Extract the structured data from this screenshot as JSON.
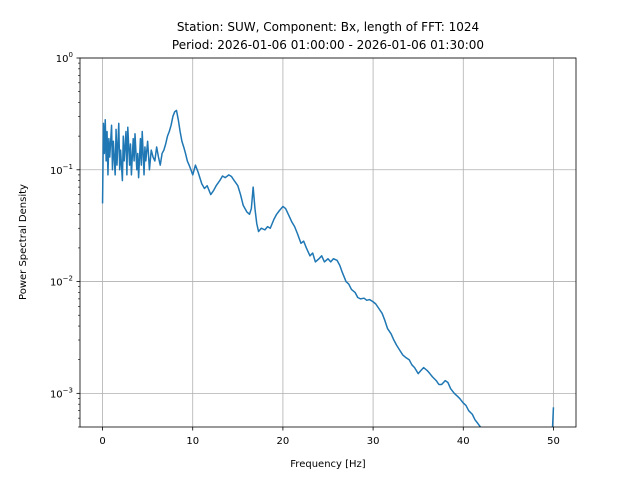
{
  "chart_data": {
    "type": "line",
    "title_line1": "Station: SUW, Component: Bx, length of FFT: 1024",
    "title_line2": "Period: 2026-01-06 01:00:00 - 2026-01-06 01:30:00",
    "xlabel": "Frequency [Hz]",
    "ylabel": "Power Spectral Density",
    "y_scale": "log",
    "xlim": [
      -2.5,
      52.5
    ],
    "ylim": [
      0.0005,
      1
    ],
    "grid": true,
    "legend": "none",
    "series_color": "#1f77b4",
    "x_ticks": [
      {
        "value": 0,
        "label": "0"
      },
      {
        "value": 10,
        "label": "10"
      },
      {
        "value": 20,
        "label": "20"
      },
      {
        "value": 30,
        "label": "30"
      },
      {
        "value": 40,
        "label": "40"
      },
      {
        "value": 50,
        "label": "50"
      }
    ],
    "y_ticks": [
      {
        "value": 0.001,
        "base": "10",
        "exp": "−3"
      },
      {
        "value": 0.01,
        "base": "10",
        "exp": "−2"
      },
      {
        "value": 0.1,
        "base": "10",
        "exp": "−1"
      },
      {
        "value": 1,
        "base": "10",
        "exp": "0"
      }
    ],
    "series": [
      {
        "x": [
          0.0,
          0.1,
          0.2,
          0.3,
          0.4,
          0.5,
          0.6,
          0.7,
          0.8,
          1.0,
          1.1,
          1.2,
          1.4,
          1.5,
          1.6,
          1.8,
          1.9,
          2.0,
          2.2,
          2.3,
          2.4,
          2.6,
          2.7,
          2.8,
          3.0,
          3.1,
          3.2,
          3.4,
          3.5,
          3.6,
          3.8,
          3.9,
          4.0,
          4.2,
          4.3,
          4.4,
          4.6,
          4.7,
          4.8,
          5.0,
          5.2,
          5.4,
          5.6,
          5.8,
          6.0,
          6.2,
          6.4,
          6.6,
          6.8,
          7.0,
          7.2,
          7.4,
          7.6,
          7.8,
          8.0,
          8.2,
          8.4,
          8.6,
          8.8,
          9.0,
          9.2,
          9.4,
          9.6,
          9.8,
          10.0,
          10.3,
          10.6,
          11.0,
          11.3,
          11.6,
          12.0,
          12.3,
          12.6,
          13.0,
          13.3,
          13.6,
          14.0,
          14.3,
          14.6,
          15.0,
          15.3,
          15.6,
          16.0,
          16.3,
          16.5,
          16.7,
          16.9,
          17.1,
          17.3,
          17.6,
          18.0,
          18.3,
          18.6,
          19.0,
          19.3,
          19.6,
          20.0,
          20.3,
          20.6,
          21.0,
          21.3,
          21.6,
          22.0,
          22.3,
          22.6,
          23.0,
          23.3,
          23.6,
          24.0,
          24.3,
          24.6,
          25.0,
          25.3,
          25.6,
          26.0,
          26.3,
          26.6,
          27.0,
          27.3,
          27.6,
          28.0,
          28.3,
          28.6,
          29.0,
          29.3,
          29.6,
          30.0,
          30.3,
          30.6,
          31.0,
          31.3,
          31.6,
          32.0,
          32.3,
          32.6,
          33.0,
          33.3,
          33.6,
          34.0,
          34.3,
          34.6,
          35.0,
          35.3,
          35.6,
          36.0,
          36.3,
          36.6,
          37.0,
          37.3,
          37.6,
          38.0,
          38.3,
          38.6,
          39.0,
          39.3,
          39.6,
          40.0,
          40.3,
          40.6,
          41.0,
          41.3,
          41.6,
          41.9
        ],
        "y": [
          0.05,
          0.26,
          0.14,
          0.28,
          0.12,
          0.22,
          0.09,
          0.19,
          0.13,
          0.25,
          0.1,
          0.18,
          0.09,
          0.23,
          0.11,
          0.26,
          0.1,
          0.15,
          0.08,
          0.2,
          0.12,
          0.22,
          0.09,
          0.24,
          0.11,
          0.17,
          0.09,
          0.19,
          0.12,
          0.21,
          0.1,
          0.14,
          0.085,
          0.19,
          0.11,
          0.22,
          0.09,
          0.16,
          0.12,
          0.18,
          0.1,
          0.15,
          0.13,
          0.12,
          0.16,
          0.13,
          0.11,
          0.14,
          0.15,
          0.17,
          0.2,
          0.22,
          0.25,
          0.3,
          0.33,
          0.34,
          0.28,
          0.22,
          0.18,
          0.16,
          0.14,
          0.12,
          0.11,
          0.1,
          0.09,
          0.11,
          0.095,
          0.075,
          0.068,
          0.072,
          0.06,
          0.065,
          0.072,
          0.08,
          0.088,
          0.085,
          0.09,
          0.087,
          0.08,
          0.072,
          0.06,
          0.048,
          0.042,
          0.04,
          0.045,
          0.07,
          0.045,
          0.033,
          0.028,
          0.03,
          0.029,
          0.031,
          0.03,
          0.036,
          0.04,
          0.043,
          0.047,
          0.045,
          0.04,
          0.034,
          0.031,
          0.027,
          0.022,
          0.023,
          0.02,
          0.017,
          0.018,
          0.015,
          0.016,
          0.017,
          0.015,
          0.016,
          0.015,
          0.016,
          0.0155,
          0.014,
          0.012,
          0.01,
          0.0095,
          0.0085,
          0.008,
          0.0072,
          0.007,
          0.0071,
          0.0068,
          0.0069,
          0.0066,
          0.0063,
          0.0058,
          0.0052,
          0.0045,
          0.0038,
          0.0034,
          0.003,
          0.0027,
          0.0024,
          0.0022,
          0.0021,
          0.002,
          0.0018,
          0.0017,
          0.0015,
          0.0016,
          0.0017,
          0.0016,
          0.0015,
          0.0014,
          0.0013,
          0.0012,
          0.0012,
          0.0013,
          0.00125,
          0.0011,
          0.001,
          0.00095,
          0.0009,
          0.00082,
          0.00078,
          0.0007,
          0.00065,
          0.00058,
          0.00054,
          0.0005
        ]
      },
      {
        "x": [
          49.9,
          50.0
        ],
        "y": [
          0.0005,
          0.00075
        ]
      }
    ]
  }
}
